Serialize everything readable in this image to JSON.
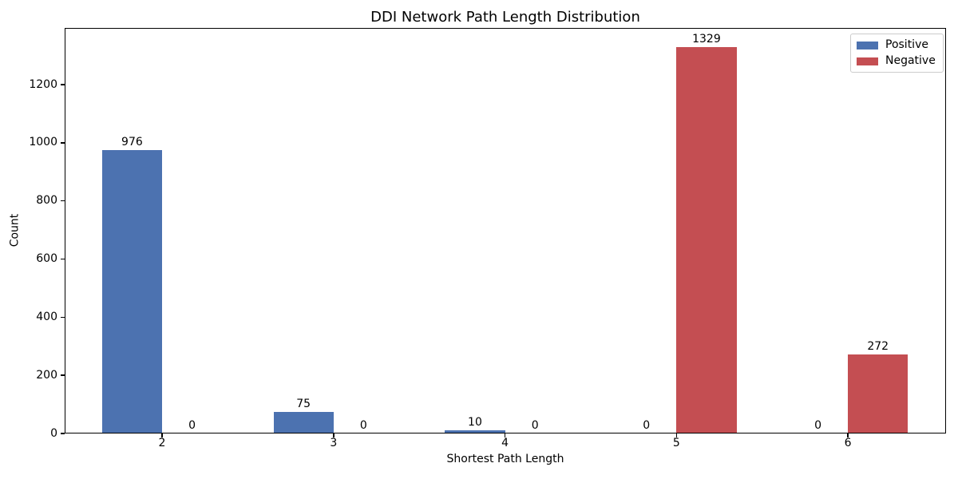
{
  "chart_data": {
    "type": "bar",
    "title": "DDI Network Path Length Distribution",
    "xlabel": "Shortest Path Length",
    "ylabel": "Count",
    "categories": [
      2,
      3,
      4,
      5,
      6
    ],
    "series": [
      {
        "name": "Positive",
        "color": "#4C72B0",
        "values": [
          976,
          75,
          10,
          0,
          0
        ]
      },
      {
        "name": "Negative",
        "color": "#C44E52",
        "values": [
          0,
          0,
          0,
          1329,
          272
        ]
      }
    ],
    "bar_value_labels": [
      {
        "category": 2,
        "Positive": "976",
        "Negative": "0"
      },
      {
        "category": 3,
        "Positive": "75",
        "Negative": "0"
      },
      {
        "category": 4,
        "Positive": "10",
        "Negative": "0"
      },
      {
        "category": 5,
        "Positive": "0",
        "Negative": "1329"
      },
      {
        "category": 6,
        "Positive": "0",
        "Negative": "272"
      }
    ],
    "yticks": [
      0,
      200,
      400,
      600,
      800,
      1000,
      1200
    ],
    "ylim": [
      0,
      1395
    ],
    "grid": false,
    "legend": {
      "position": "upper right",
      "entries": [
        "Positive",
        "Negative"
      ]
    },
    "background": "#ffffff",
    "text_color": "#000000"
  }
}
